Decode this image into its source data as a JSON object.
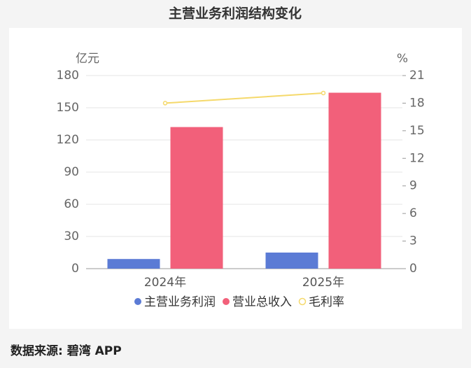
{
  "chart_data": {
    "type": "bar",
    "title": "主营业务利润结构变化",
    "y_label": "亿元",
    "y2_label": "%",
    "categories": [
      "2024年",
      "2025年"
    ],
    "series": [
      {
        "name": "主营业务利润",
        "color": "#5b7bd5",
        "values": [
          9,
          15
        ]
      },
      {
        "name": "营业总收入",
        "color": "#f2607a",
        "values": [
          132,
          164
        ]
      },
      {
        "name": "毛利率",
        "color": "#f5d96b",
        "type": "line",
        "axis": "y2",
        "values": [
          18.0,
          19.1
        ]
      }
    ],
    "ylim": [
      0,
      180
    ],
    "yticks": [
      0,
      30,
      60,
      90,
      120,
      150,
      180
    ],
    "y2lim": [
      0,
      21
    ],
    "y2ticks": [
      0,
      3,
      6,
      9,
      12,
      15,
      18,
      21
    ],
    "grid": true,
    "source": "数据来源: 碧湾 APP"
  }
}
